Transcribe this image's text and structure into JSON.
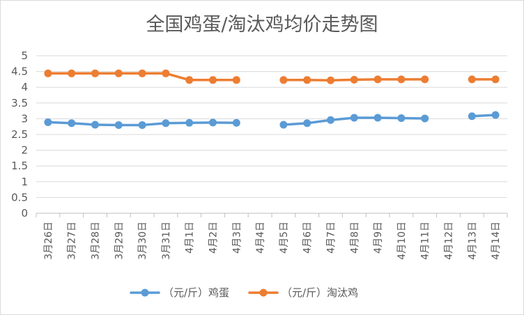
{
  "chart_data": {
    "type": "line",
    "title": "全国鸡蛋/淘汰鸡均价走势图",
    "xlabel": "",
    "ylabel": "",
    "ylim": [
      0,
      5
    ],
    "yticks": [
      "0",
      "0.5",
      "1",
      "1.5",
      "2",
      "2.5",
      "3",
      "3.5",
      "4",
      "4.5",
      "5"
    ],
    "grid": true,
    "legend_position": "bottom",
    "categories": [
      "3月26日",
      "3月27日",
      "3月28日",
      "3月29日",
      "3月30日",
      "3月31日",
      "4月1日",
      "4月2日",
      "4月3日",
      "4月4日",
      "4月5日",
      "4月6日",
      "4月7日",
      "4月8日",
      "4月9日",
      "4月10日",
      "4月11日",
      "4月12日",
      "4月13日",
      "4月14日"
    ],
    "series": [
      {
        "name": "（元/斤）鸡蛋",
        "color": "#5b9bd5",
        "values": [
          2.89,
          2.86,
          2.81,
          2.8,
          2.8,
          2.86,
          2.87,
          2.88,
          2.87,
          null,
          2.81,
          2.86,
          2.96,
          3.03,
          3.03,
          3.02,
          3.01,
          null,
          3.08,
          3.12
        ]
      },
      {
        "name": "（元/斤）淘汰鸡",
        "color": "#ed7d31",
        "values": [
          4.44,
          4.44,
          4.44,
          4.44,
          4.44,
          4.44,
          4.23,
          4.23,
          4.23,
          null,
          4.23,
          4.23,
          4.22,
          4.24,
          4.25,
          4.25,
          4.25,
          null,
          4.25,
          4.25
        ]
      }
    ]
  }
}
